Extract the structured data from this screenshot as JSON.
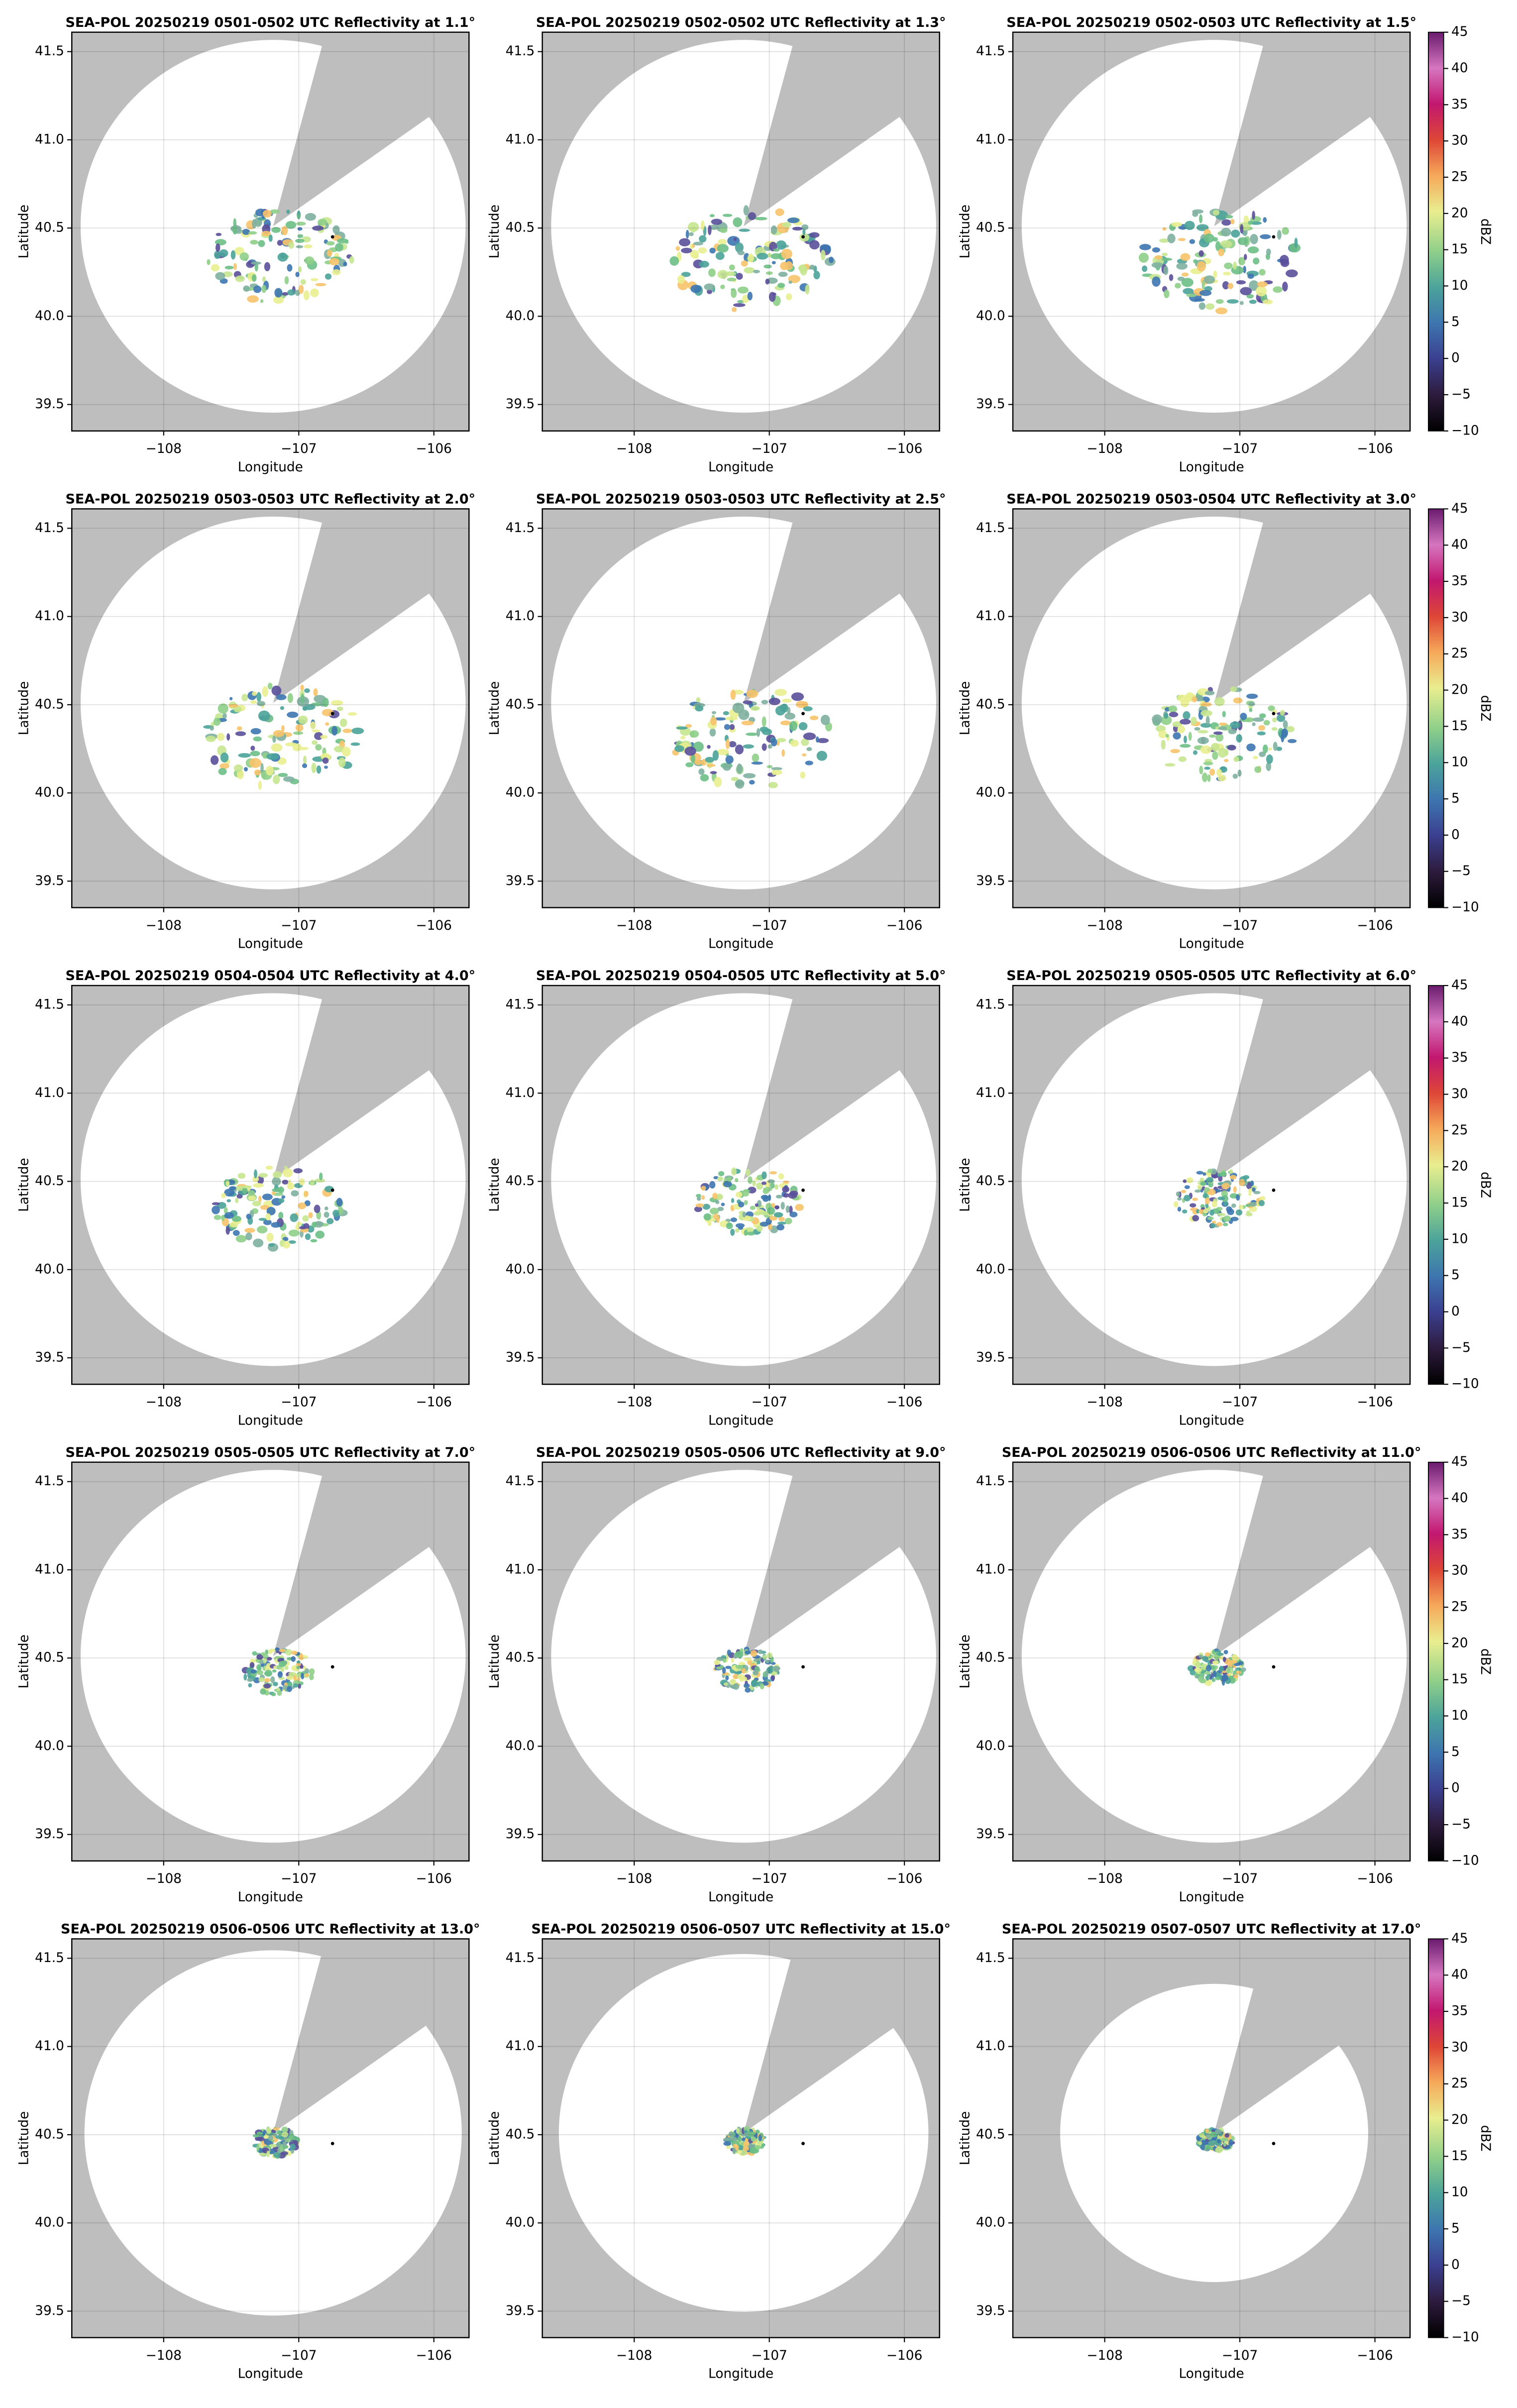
{
  "chart_data": [
    {
      "type": "map",
      "title": "SEA-POL 20250219 0501-0502 UTC Reflectivity at 1.1°",
      "xlabel": "Longitude",
      "ylabel": "Latitude",
      "xlim": [
        -108.68,
        -105.74
      ],
      "ylim": [
        39.35,
        41.61
      ],
      "xticks": [
        {
          "value": -108,
          "label": "−108"
        },
        {
          "value": -107,
          "label": "−107"
        },
        {
          "value": -106,
          "label": "−106"
        }
      ],
      "yticks": [
        39.5,
        {
          "value": 40,
          "label": "40.0"
        },
        40.5,
        {
          "value": 41,
          "label": "41.0"
        },
        41.5
      ],
      "grid": true
    },
    {
      "type": "map",
      "title": "SEA-POL 20250219 0502-0502 UTC Reflectivity at 1.3°",
      "xlabel": "Longitude",
      "ylabel": "Latitude",
      "xlim": [
        -108.68,
        -105.74
      ],
      "ylim": [
        39.35,
        41.61
      ],
      "xticks": [
        {
          "value": -108,
          "label": "−108"
        },
        {
          "value": -107,
          "label": "−107"
        },
        {
          "value": -106,
          "label": "−106"
        }
      ],
      "yticks": [
        39.5,
        {
          "value": 40,
          "label": "40.0"
        },
        40.5,
        {
          "value": 41,
          "label": "41.0"
        },
        41.5
      ],
      "grid": true
    },
    {
      "type": "map",
      "title": "SEA-POL 20250219 0502-0503 UTC Reflectivity at 1.5°",
      "xlabel": "Longitude",
      "ylabel": "Latitude",
      "xlim": [
        -108.68,
        -105.74
      ],
      "ylim": [
        39.35,
        41.61
      ],
      "xticks": [
        {
          "value": -108,
          "label": "−108"
        },
        {
          "value": -107,
          "label": "−107"
        },
        {
          "value": -106,
          "label": "−106"
        }
      ],
      "yticks": [
        39.5,
        {
          "value": 40,
          "label": "40.0"
        },
        40.5,
        {
          "value": 41,
          "label": "41.0"
        },
        41.5
      ],
      "grid": true,
      "colorbar": {
        "label": "dBZ",
        "lim": [
          -10,
          45
        ],
        "ticks": [
          {
            "value": -10,
            "label": "−10"
          },
          {
            "value": -5,
            "label": "−5"
          },
          0,
          5,
          10,
          15,
          20,
          25,
          30,
          35,
          40,
          45
        ]
      }
    },
    {
      "type": "map",
      "title": "SEA-POL 20250219 0503-0503 UTC Reflectivity at 2.0°",
      "xlabel": "Longitude",
      "ylabel": "Latitude",
      "xlim": [
        -108.68,
        -105.74
      ],
      "ylim": [
        39.35,
        41.61
      ],
      "xticks": [
        {
          "value": -108,
          "label": "−108"
        },
        {
          "value": -107,
          "label": "−107"
        },
        {
          "value": -106,
          "label": "−106"
        }
      ],
      "yticks": [
        39.5,
        {
          "value": 40,
          "label": "40.0"
        },
        40.5,
        {
          "value": 41,
          "label": "41.0"
        },
        41.5
      ],
      "grid": true
    },
    {
      "type": "map",
      "title": "SEA-POL 20250219 0503-0503 UTC Reflectivity at 2.5°",
      "xlabel": "Longitude",
      "ylabel": "Latitude",
      "xlim": [
        -108.68,
        -105.74
      ],
      "ylim": [
        39.35,
        41.61
      ],
      "xticks": [
        {
          "value": -108,
          "label": "−108"
        },
        {
          "value": -107,
          "label": "−107"
        },
        {
          "value": -106,
          "label": "−106"
        }
      ],
      "yticks": [
        39.5,
        {
          "value": 40,
          "label": "40.0"
        },
        40.5,
        {
          "value": 41,
          "label": "41.0"
        },
        41.5
      ],
      "grid": true
    },
    {
      "type": "map",
      "title": "SEA-POL 20250219 0503-0504 UTC Reflectivity at 3.0°",
      "xlabel": "Longitude",
      "ylabel": "Latitude",
      "xlim": [
        -108.68,
        -105.74
      ],
      "ylim": [
        39.35,
        41.61
      ],
      "xticks": [
        {
          "value": -108,
          "label": "−108"
        },
        {
          "value": -107,
          "label": "−107"
        },
        {
          "value": -106,
          "label": "−106"
        }
      ],
      "yticks": [
        39.5,
        {
          "value": 40,
          "label": "40.0"
        },
        40.5,
        {
          "value": 41,
          "label": "41.0"
        },
        41.5
      ],
      "grid": true,
      "colorbar": {
        "label": "dBZ",
        "lim": [
          -10,
          45
        ],
        "ticks": [
          {
            "value": -10,
            "label": "−10"
          },
          {
            "value": -5,
            "label": "−5"
          },
          0,
          5,
          10,
          15,
          20,
          25,
          30,
          35,
          40,
          45
        ]
      }
    },
    {
      "type": "map",
      "title": "SEA-POL 20250219 0504-0504 UTC Reflectivity at 4.0°",
      "xlabel": "Longitude",
      "ylabel": "Latitude",
      "xlim": [
        -108.68,
        -105.74
      ],
      "ylim": [
        39.35,
        41.61
      ],
      "xticks": [
        {
          "value": -108,
          "label": "−108"
        },
        {
          "value": -107,
          "label": "−107"
        },
        {
          "value": -106,
          "label": "−106"
        }
      ],
      "yticks": [
        39.5,
        {
          "value": 40,
          "label": "40.0"
        },
        40.5,
        {
          "value": 41,
          "label": "41.0"
        },
        41.5
      ],
      "grid": true
    },
    {
      "type": "map",
      "title": "SEA-POL 20250219 0504-0505 UTC Reflectivity at 5.0°",
      "xlabel": "Longitude",
      "ylabel": "Latitude",
      "xlim": [
        -108.68,
        -105.74
      ],
      "ylim": [
        39.35,
        41.61
      ],
      "xticks": [
        {
          "value": -108,
          "label": "−108"
        },
        {
          "value": -107,
          "label": "−107"
        },
        {
          "value": -106,
          "label": "−106"
        }
      ],
      "yticks": [
        39.5,
        {
          "value": 40,
          "label": "40.0"
        },
        40.5,
        {
          "value": 41,
          "label": "41.0"
        },
        41.5
      ],
      "grid": true
    },
    {
      "type": "map",
      "title": "SEA-POL 20250219 0505-0505 UTC Reflectivity at 6.0°",
      "xlabel": "Longitude",
      "ylabel": "Latitude",
      "xlim": [
        -108.68,
        -105.74
      ],
      "ylim": [
        39.35,
        41.61
      ],
      "xticks": [
        {
          "value": -108,
          "label": "−108"
        },
        {
          "value": -107,
          "label": "−107"
        },
        {
          "value": -106,
          "label": "−106"
        }
      ],
      "yticks": [
        39.5,
        {
          "value": 40,
          "label": "40.0"
        },
        40.5,
        {
          "value": 41,
          "label": "41.0"
        },
        41.5
      ],
      "grid": true,
      "colorbar": {
        "label": "dBZ",
        "lim": [
          -10,
          45
        ],
        "ticks": [
          {
            "value": -10,
            "label": "−10"
          },
          {
            "value": -5,
            "label": "−5"
          },
          0,
          5,
          10,
          15,
          20,
          25,
          30,
          35,
          40,
          45
        ]
      }
    },
    {
      "type": "map",
      "title": "SEA-POL 20250219 0505-0505 UTC Reflectivity at 7.0°",
      "xlabel": "Longitude",
      "ylabel": "Latitude",
      "xlim": [
        -108.68,
        -105.74
      ],
      "ylim": [
        39.35,
        41.61
      ],
      "xticks": [
        {
          "value": -108,
          "label": "−108"
        },
        {
          "value": -107,
          "label": "−107"
        },
        {
          "value": -106,
          "label": "−106"
        }
      ],
      "yticks": [
        39.5,
        {
          "value": 40,
          "label": "40.0"
        },
        40.5,
        {
          "value": 41,
          "label": "41.0"
        },
        41.5
      ],
      "grid": true
    },
    {
      "type": "map",
      "title": "SEA-POL 20250219 0505-0506 UTC Reflectivity at 9.0°",
      "xlabel": "Longitude",
      "ylabel": "Latitude",
      "xlim": [
        -108.68,
        -105.74
      ],
      "ylim": [
        39.35,
        41.61
      ],
      "xticks": [
        {
          "value": -108,
          "label": "−108"
        },
        {
          "value": -107,
          "label": "−107"
        },
        {
          "value": -106,
          "label": "−106"
        }
      ],
      "yticks": [
        39.5,
        {
          "value": 40,
          "label": "40.0"
        },
        40.5,
        {
          "value": 41,
          "label": "41.0"
        },
        41.5
      ],
      "grid": true
    },
    {
      "type": "map",
      "title": "SEA-POL 20250219 0506-0506 UTC Reflectivity at 11.0°",
      "xlabel": "Longitude",
      "ylabel": "Latitude",
      "xlim": [
        -108.68,
        -105.74
      ],
      "ylim": [
        39.35,
        41.61
      ],
      "xticks": [
        {
          "value": -108,
          "label": "−108"
        },
        {
          "value": -107,
          "label": "−107"
        },
        {
          "value": -106,
          "label": "−106"
        }
      ],
      "yticks": [
        39.5,
        {
          "value": 40,
          "label": "40.0"
        },
        40.5,
        {
          "value": 41,
          "label": "41.0"
        },
        41.5
      ],
      "grid": true,
      "colorbar": {
        "label": "dBZ",
        "lim": [
          -10,
          45
        ],
        "ticks": [
          {
            "value": -10,
            "label": "−10"
          },
          {
            "value": -5,
            "label": "−5"
          },
          0,
          5,
          10,
          15,
          20,
          25,
          30,
          35,
          40,
          45
        ]
      }
    },
    {
      "type": "map",
      "title": "SEA-POL 20250219 0506-0506 UTC Reflectivity at 13.0°",
      "xlabel": "Longitude",
      "ylabel": "Latitude",
      "xlim": [
        -108.68,
        -105.74
      ],
      "ylim": [
        39.35,
        41.61
      ],
      "xticks": [
        {
          "value": -108,
          "label": "−108"
        },
        {
          "value": -107,
          "label": "−107"
        },
        {
          "value": -106,
          "label": "−106"
        }
      ],
      "yticks": [
        39.5,
        {
          "value": 40,
          "label": "40.0"
        },
        40.5,
        {
          "value": 41,
          "label": "41.0"
        },
        41.5
      ],
      "grid": true
    },
    {
      "type": "map",
      "title": "SEA-POL 20250219 0506-0507 UTC Reflectivity at 15.0°",
      "xlabel": "Longitude",
      "ylabel": "Latitude",
      "xlim": [
        -108.68,
        -105.74
      ],
      "ylim": [
        39.35,
        41.61
      ],
      "xticks": [
        {
          "value": -108,
          "label": "−108"
        },
        {
          "value": -107,
          "label": "−107"
        },
        {
          "value": -106,
          "label": "−106"
        }
      ],
      "yticks": [
        39.5,
        {
          "value": 40,
          "label": "40.0"
        },
        40.5,
        {
          "value": 41,
          "label": "41.0"
        },
        41.5
      ],
      "grid": true
    },
    {
      "type": "map",
      "title": "SEA-POL 20250219 0507-0507 UTC Reflectivity at 17.0°",
      "xlabel": "Longitude",
      "ylabel": "Latitude",
      "xlim": [
        -108.68,
        -105.74
      ],
      "ylim": [
        39.35,
        41.61
      ],
      "xticks": [
        {
          "value": -108,
          "label": "−108"
        },
        {
          "value": -107,
          "label": "−107"
        },
        {
          "value": -106,
          "label": "−106"
        }
      ],
      "yticks": [
        39.5,
        {
          "value": 40,
          "label": "40.0"
        },
        40.5,
        {
          "value": 41,
          "label": "41.0"
        },
        41.5
      ],
      "grid": true,
      "colorbar": {
        "label": "dBZ",
        "lim": [
          -10,
          45
        ],
        "ticks": [
          {
            "value": -10,
            "label": "−10"
          },
          {
            "value": -5,
            "label": "−5"
          },
          0,
          5,
          10,
          15,
          20,
          25,
          30,
          35,
          40,
          45
        ]
      }
    }
  ]
}
